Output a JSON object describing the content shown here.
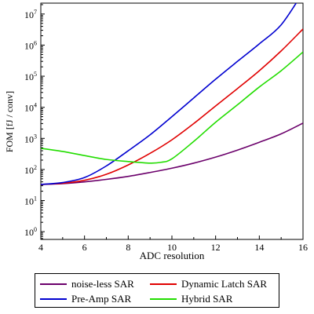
{
  "chart_data": {
    "type": "line",
    "xlabel": "ADC resolution",
    "ylabel": "FOM [fJ / conv]",
    "xlim": [
      4,
      16
    ],
    "ylim_log10": [
      -0.25,
      7.35
    ],
    "y_scale": "log",
    "grid": false,
    "legend_placement": "below",
    "x_ticks": [
      {
        "value": 4,
        "label": "4"
      },
      {
        "value": 6,
        "label": "6"
      },
      {
        "value": 8,
        "label": "8"
      },
      {
        "value": 10,
        "label": "10"
      },
      {
        "value": 12,
        "label": "12"
      },
      {
        "value": 14,
        "label": "14"
      },
      {
        "value": 16,
        "label": "16"
      }
    ],
    "y_ticks": [
      {
        "exp": 0,
        "base": "10",
        "sup": "0"
      },
      {
        "exp": 1,
        "base": "10",
        "sup": "1"
      },
      {
        "exp": 2,
        "base": "10",
        "sup": "2"
      },
      {
        "exp": 3,
        "base": "10",
        "sup": "3"
      },
      {
        "exp": 4,
        "base": "10",
        "sup": "4"
      },
      {
        "exp": 5,
        "base": "10",
        "sup": "5"
      },
      {
        "exp": 6,
        "base": "10",
        "sup": "6"
      },
      {
        "exp": 7,
        "base": "10",
        "sup": "7"
      }
    ],
    "series": [
      {
        "name": "noise-less SAR",
        "color": "#6b006b",
        "x": [
          4,
          5,
          6,
          7,
          8,
          9,
          10,
          11,
          12,
          13,
          14,
          15,
          16
        ],
        "y": [
          33,
          35,
          40,
          48,
          60,
          80,
          110,
          160,
          250,
          420,
          750,
          1400,
          3100
        ]
      },
      {
        "name": "Dynamic Latch SAR",
        "color": "#e00000",
        "x": [
          4,
          5,
          6,
          7,
          8,
          9,
          10,
          11,
          12,
          13,
          14,
          15,
          16
        ],
        "y": [
          33,
          36,
          45,
          70,
          140,
          330,
          900,
          3000,
          11000,
          40000,
          150000,
          650000,
          3300000
        ]
      },
      {
        "name": "Pre-Amp SAR",
        "color": "#0000d0",
        "x": [
          4,
          5,
          6,
          7,
          8,
          9,
          10,
          11,
          12,
          13,
          14,
          15,
          16
        ],
        "y": [
          33,
          38,
          55,
          130,
          400,
          1300,
          5000,
          20000,
          80000,
          300000,
          1100000,
          4500000,
          50000000
        ]
      },
      {
        "name": "Hybrid SAR",
        "color": "#22dd00",
        "x": [
          4,
          5,
          6,
          7,
          8,
          9,
          9.5,
          10,
          11,
          12,
          13,
          14,
          15,
          16
        ],
        "y": [
          480,
          380,
          280,
          210,
          180,
          160,
          170,
          220,
          800,
          3300,
          12000,
          45000,
          150000,
          600000
        ]
      }
    ]
  },
  "legend": {
    "items": [
      {
        "label": "noise-less SAR",
        "color": "#6b006b"
      },
      {
        "label": "Dynamic Latch SAR",
        "color": "#e00000"
      },
      {
        "label": "Pre-Amp SAR",
        "color": "#0000d0"
      },
      {
        "label": "Hybrid SAR",
        "color": "#22dd00"
      }
    ]
  }
}
